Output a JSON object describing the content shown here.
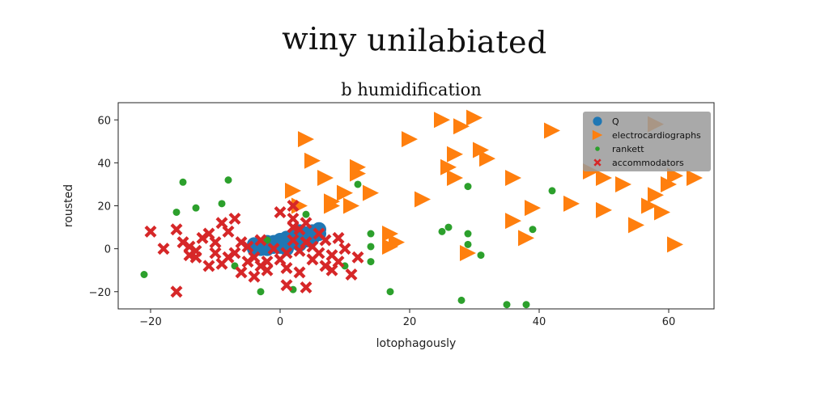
{
  "suptitle": "winy unilabiated",
  "chart_data": {
    "type": "scatter",
    "title": "b humidification",
    "xlabel": "lotophagously",
    "ylabel": "rousted",
    "xlim": [
      -25,
      67
    ],
    "ylim": [
      -28,
      68
    ],
    "xticks": [
      -20,
      0,
      20,
      40,
      60
    ],
    "yticks": [
      -20,
      0,
      20,
      40,
      60
    ],
    "xtick_labels": [
      "−20",
      "0",
      "20",
      "40",
      "60"
    ],
    "ytick_labels": [
      "−20",
      "0",
      "20",
      "40",
      "60"
    ],
    "grid": false,
    "legend_position": "upper right",
    "series": [
      {
        "name": "Q",
        "marker": "circle-large",
        "color": "#1f77b4",
        "points": [
          [
            -4,
            2
          ],
          [
            -3,
            1
          ],
          [
            -2,
            3
          ],
          [
            -1,
            2
          ],
          [
            0,
            4
          ],
          [
            1,
            3
          ],
          [
            2,
            5
          ],
          [
            3,
            4
          ],
          [
            4,
            6
          ],
          [
            5,
            8
          ],
          [
            -3,
            0
          ],
          [
            -1,
            1
          ],
          [
            1,
            2
          ],
          [
            2,
            3
          ],
          [
            3,
            6
          ],
          [
            4,
            4
          ],
          [
            5,
            6
          ],
          [
            0,
            1
          ],
          [
            -2,
            0
          ],
          [
            6,
            9
          ],
          [
            1,
            5
          ],
          [
            3,
            8
          ],
          [
            -1,
            3
          ],
          [
            2,
            6
          ],
          [
            4,
            7
          ],
          [
            0,
            2
          ],
          [
            -4,
            0
          ],
          [
            5,
            5
          ],
          [
            3,
            2
          ],
          [
            -2,
            2
          ],
          [
            6,
            7
          ],
          [
            1,
            0
          ]
        ]
      },
      {
        "name": "electrocardiographs",
        "marker": "triangle-right",
        "color": "#ff7f0e",
        "points": [
          [
            4,
            51
          ],
          [
            5,
            41
          ],
          [
            7,
            33
          ],
          [
            8,
            22
          ],
          [
            10,
            26
          ],
          [
            12,
            38
          ],
          [
            12,
            35
          ],
          [
            14,
            26
          ],
          [
            3,
            20
          ],
          [
            2,
            27
          ],
          [
            8,
            20
          ],
          [
            11,
            20
          ],
          [
            20,
            51
          ],
          [
            18,
            3
          ],
          [
            17,
            7
          ],
          [
            22,
            23
          ],
          [
            25,
            60
          ],
          [
            28,
            57
          ],
          [
            30,
            61
          ],
          [
            27,
            44
          ],
          [
            26,
            38
          ],
          [
            27,
            33
          ],
          [
            31,
            46
          ],
          [
            32,
            42
          ],
          [
            36,
            33
          ],
          [
            36,
            13
          ],
          [
            38,
            5
          ],
          [
            39,
            19
          ],
          [
            42,
            55
          ],
          [
            45,
            21
          ],
          [
            48,
            36
          ],
          [
            50,
            33
          ],
          [
            50,
            18
          ],
          [
            53,
            30
          ],
          [
            55,
            11
          ],
          [
            57,
            20
          ],
          [
            58,
            25
          ],
          [
            58,
            58
          ],
          [
            59,
            17
          ],
          [
            60,
            30
          ],
          [
            61,
            34
          ],
          [
            64,
            33
          ],
          [
            61,
            2
          ],
          [
            29,
            -2
          ],
          [
            17,
            1
          ]
        ]
      },
      {
        "name": "rankett",
        "marker": "circle",
        "color": "#2ca02c",
        "points": [
          [
            -21,
            -12
          ],
          [
            -16,
            17
          ],
          [
            -15,
            31
          ],
          [
            -13,
            19
          ],
          [
            -9,
            21
          ],
          [
            -8,
            32
          ],
          [
            -7,
            -8
          ],
          [
            -3,
            -20
          ],
          [
            2,
            -19
          ],
          [
            4,
            16
          ],
          [
            10,
            -8
          ],
          [
            12,
            30
          ],
          [
            14,
            7
          ],
          [
            14,
            1
          ],
          [
            14,
            -6
          ],
          [
            17,
            -20
          ],
          [
            25,
            8
          ],
          [
            26,
            10
          ],
          [
            28,
            -24
          ],
          [
            29,
            29
          ],
          [
            29,
            7
          ],
          [
            29,
            2
          ],
          [
            31,
            -3
          ],
          [
            35,
            -26
          ],
          [
            38,
            -26
          ],
          [
            39,
            9
          ],
          [
            42,
            27
          ],
          [
            -2,
            4
          ]
        ]
      },
      {
        "name": "accommodators",
        "marker": "x",
        "color": "#d62728",
        "points": [
          [
            -20,
            8
          ],
          [
            -16,
            9
          ],
          [
            -15,
            3
          ],
          [
            -14,
            1
          ],
          [
            -14,
            -3
          ],
          [
            -13,
            -4
          ],
          [
            -12,
            5
          ],
          [
            -11,
            -8
          ],
          [
            -11,
            7
          ],
          [
            -10,
            3
          ],
          [
            -10,
            -2
          ],
          [
            -9,
            -7
          ],
          [
            -9,
            12
          ],
          [
            -8,
            8
          ],
          [
            -8,
            -4
          ],
          [
            -7,
            14
          ],
          [
            -7,
            -2
          ],
          [
            -6,
            3
          ],
          [
            -5,
            -6
          ],
          [
            -5,
            1
          ],
          [
            -4,
            -13
          ],
          [
            -4,
            -4
          ],
          [
            -3,
            -8
          ],
          [
            -3,
            4
          ],
          [
            -2,
            -6
          ],
          [
            -2,
            -10
          ],
          [
            -1,
            0
          ],
          [
            0,
            -5
          ],
          [
            0,
            17
          ],
          [
            1,
            -17
          ],
          [
            1,
            -9
          ],
          [
            1,
            -2
          ],
          [
            2,
            10
          ],
          [
            2,
            14
          ],
          [
            2,
            4
          ],
          [
            3,
            -11
          ],
          [
            3,
            -1
          ],
          [
            3,
            9
          ],
          [
            4,
            -18
          ],
          [
            4,
            3
          ],
          [
            5,
            -5
          ],
          [
            5,
            1
          ],
          [
            6,
            -2
          ],
          [
            6,
            7
          ],
          [
            7,
            -8
          ],
          [
            7,
            4
          ],
          [
            8,
            -3
          ],
          [
            8,
            -10
          ],
          [
            9,
            -6
          ],
          [
            9,
            5
          ],
          [
            10,
            0
          ],
          [
            11,
            -12
          ],
          [
            12,
            -4
          ],
          [
            -16,
            -20
          ],
          [
            -18,
            0
          ],
          [
            -13,
            -1
          ],
          [
            -6,
            -11
          ],
          [
            2,
            20
          ],
          [
            4,
            12
          ]
        ]
      }
    ]
  }
}
